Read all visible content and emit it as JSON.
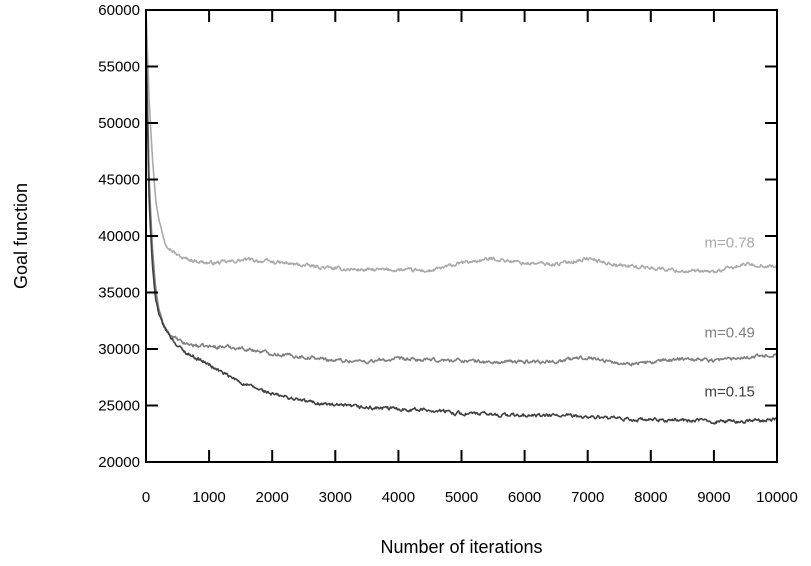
{
  "chart_data": {
    "type": "line",
    "title": "",
    "xlabel": "Number of iterations",
    "ylabel": "Goal function",
    "xlim": [
      0,
      10000
    ],
    "ylim": [
      20000,
      60000
    ],
    "x_ticks": [
      0,
      1000,
      2000,
      3000,
      4000,
      5000,
      6000,
      7000,
      8000,
      9000,
      10000
    ],
    "y_ticks": [
      20000,
      25000,
      30000,
      35000,
      40000,
      45000,
      50000,
      55000,
      60000
    ],
    "x_tick_labels": [
      "0",
      "1000",
      "2000",
      "3000",
      "4000",
      "5000",
      "6000",
      "7000",
      "8000",
      "9000",
      "10000"
    ],
    "y_tick_labels": [
      "20000",
      "25000",
      "30000",
      "35000",
      "40000",
      "45000",
      "50000",
      "55000",
      "60000"
    ],
    "grid": false,
    "series": [
      {
        "label": "m=0.78",
        "color": "#aaaaaa",
        "label_at": [
          9250,
          39000
        ],
        "x": [
          0,
          50,
          100,
          150,
          200,
          300,
          400,
          500,
          600,
          800,
          1000,
          1300,
          1600,
          2000,
          2500,
          3000,
          3500,
          4000,
          4500,
          5000,
          5500,
          6000,
          6500,
          7000,
          7500,
          8000,
          8500,
          9000,
          9500,
          10000
        ],
        "y": [
          60000,
          52000,
          47000,
          43500,
          41500,
          39500,
          38800,
          38300,
          38000,
          37800,
          37600,
          37700,
          37900,
          37700,
          37400,
          37100,
          37000,
          37000,
          36900,
          37600,
          38000,
          37600,
          37500,
          38000,
          37400,
          37200,
          36900,
          36800,
          37500,
          37300
        ]
      },
      {
        "label": "m=0.49",
        "color": "#808080",
        "label_at": [
          9250,
          31000
        ],
        "x": [
          0,
          50,
          100,
          150,
          200,
          300,
          400,
          500,
          600,
          800,
          1000,
          1300,
          1600,
          2000,
          2500,
          3000,
          3500,
          4000,
          4500,
          5000,
          5500,
          6000,
          6500,
          7000,
          7500,
          8000,
          8500,
          9000,
          9500,
          10000
        ],
        "y": [
          58000,
          45000,
          39000,
          35500,
          33500,
          31800,
          31200,
          30800,
          30500,
          30300,
          30200,
          30200,
          30000,
          29600,
          29300,
          29000,
          28900,
          29100,
          29000,
          29000,
          28800,
          28900,
          28900,
          29300,
          28700,
          28800,
          29200,
          29000,
          29300,
          29500
        ]
      },
      {
        "label": "m=0.15",
        "color": "#404040",
        "label_at": [
          9250,
          25800
        ],
        "x": [
          0,
          50,
          100,
          150,
          200,
          300,
          400,
          500,
          600,
          800,
          1000,
          1300,
          1600,
          2000,
          2500,
          3000,
          3500,
          4000,
          4500,
          5000,
          5500,
          6000,
          6500,
          7000,
          7500,
          8000,
          8500,
          9000,
          9500,
          10000
        ],
        "y": [
          57000,
          43000,
          37500,
          34500,
          33000,
          31800,
          31000,
          30300,
          29800,
          29200,
          28600,
          27600,
          26800,
          26000,
          25400,
          25000,
          24800,
          24700,
          24600,
          24300,
          24200,
          24100,
          24100,
          24000,
          23800,
          23700,
          23700,
          23600,
          23600,
          23800
        ]
      }
    ]
  }
}
